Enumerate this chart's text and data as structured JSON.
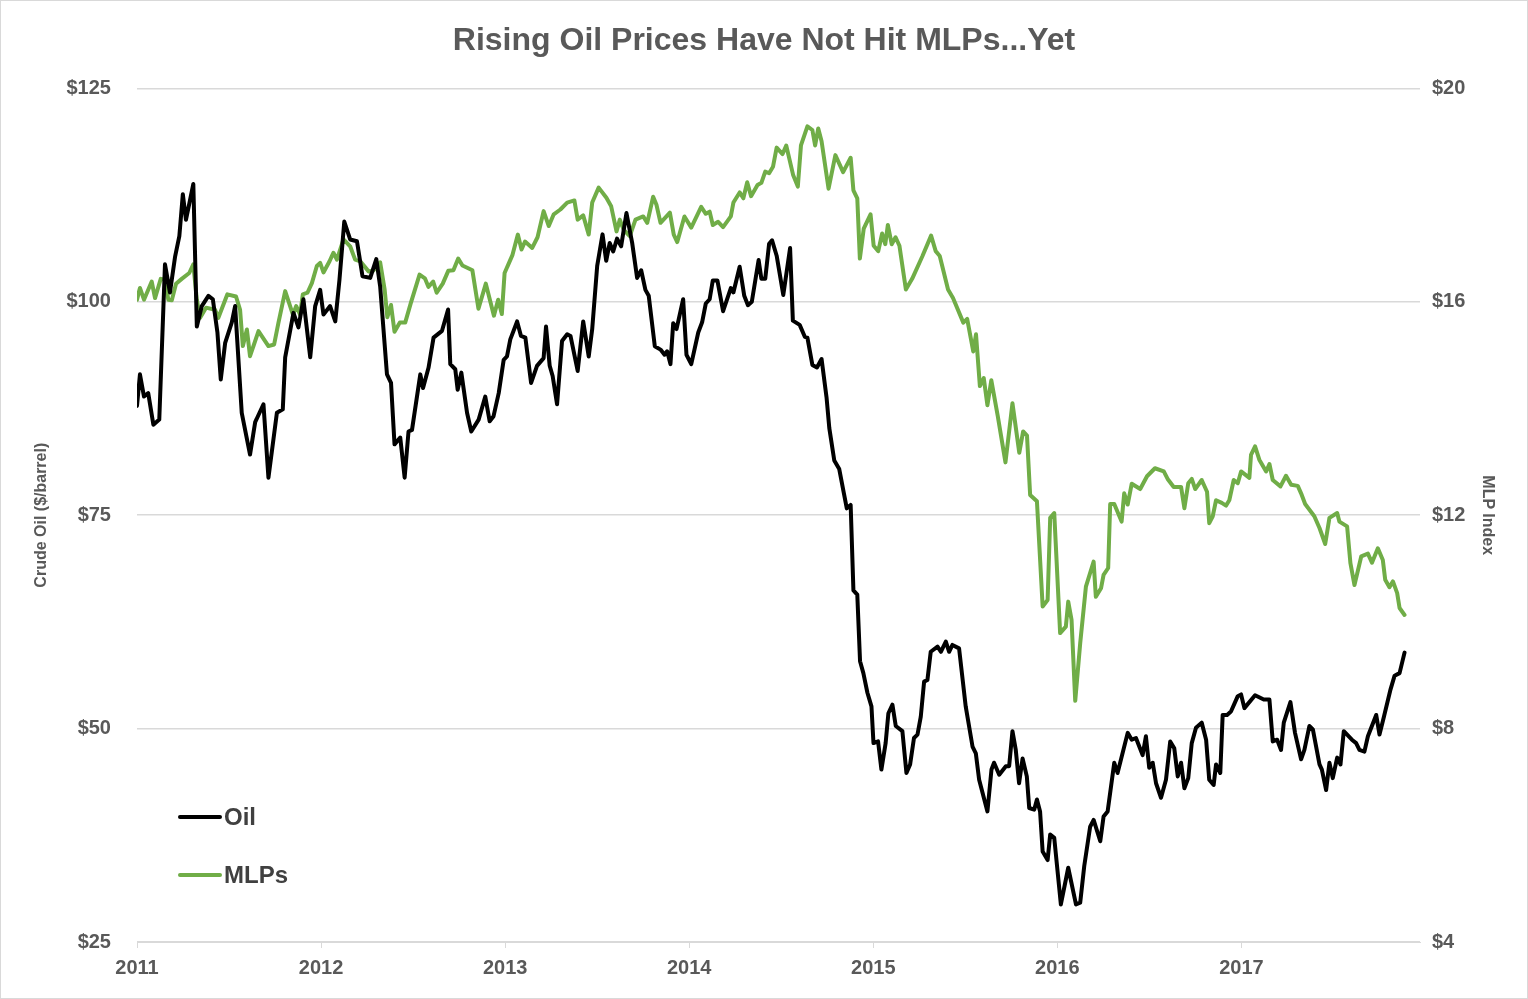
{
  "chart_data": {
    "type": "line",
    "title": "Rising Oil Prices Have Not Hit MLPs...Yet",
    "ylabel": "Crude Oil ($/barrel)",
    "y2label": "MLP Index",
    "xlim": [
      2011,
      2017.97
    ],
    "xticks": [
      2011,
      2012,
      2013,
      2014,
      2015,
      2016,
      2017
    ],
    "ylim": [
      25,
      125
    ],
    "yticks": [
      {
        "value": 25,
        "label": "$25"
      },
      {
        "value": 50,
        "label": "$50"
      },
      {
        "value": 75,
        "label": "$75"
      },
      {
        "value": 100,
        "label": "$100"
      },
      {
        "value": 125,
        "label": "$125"
      }
    ],
    "y2lim": [
      4,
      20
    ],
    "y2ticks": [
      {
        "value": 4,
        "label": "$4"
      },
      {
        "value": 8,
        "label": "$8"
      },
      {
        "value": 12,
        "label": "$12"
      },
      {
        "value": 16,
        "label": "$16"
      },
      {
        "value": 20,
        "label": "$20"
      }
    ],
    "grid": "y",
    "legend": "bottom left",
    "series": [
      {
        "name": "Oil",
        "color": "#000000",
        "x": [
          2011.0,
          2011.016,
          2011.038,
          2011.061,
          2011.089,
          2011.121,
          2011.152,
          2011.179,
          2011.207,
          2011.23,
          2011.249,
          2011.266,
          2011.306,
          2011.325,
          2011.352,
          2011.388,
          2011.412,
          2011.437,
          2011.455,
          2011.479,
          2011.515,
          2011.533,
          2011.569,
          2011.614,
          2011.642,
          2011.687,
          2011.714,
          2011.76,
          2011.792,
          2011.805,
          2011.85,
          2011.877,
          2011.904,
          2011.941,
          2011.968,
          2011.995,
          2012.013,
          2012.049,
          2012.077,
          2012.1,
          2012.126,
          2012.158,
          2012.195,
          2012.225,
          2012.267,
          2012.3,
          2012.321,
          2012.358,
          2012.38,
          2012.399,
          2012.43,
          2012.454,
          2012.475,
          2012.494,
          2012.539,
          2012.554,
          2012.584,
          2012.611,
          2012.657,
          2012.69,
          2012.702,
          2012.729,
          2012.742,
          2012.762,
          2012.793,
          2012.816,
          2012.856,
          2012.892,
          2012.916,
          2012.937,
          2012.965,
          2012.992,
          2013.01,
          2013.028,
          2013.065,
          2013.086,
          2013.11,
          2013.141,
          2013.173,
          2013.209,
          2013.222,
          2013.242,
          2013.258,
          2013.282,
          2013.309,
          2013.337,
          2013.355,
          2013.394,
          2013.424,
          2013.454,
          2013.473,
          2013.5,
          2013.529,
          2013.549,
          2013.568,
          2013.587,
          2013.608,
          2013.63,
          2013.659,
          2013.69,
          2013.717,
          2013.739,
          2013.762,
          2013.78,
          2013.813,
          2013.844,
          2013.866,
          2013.88,
          2013.898,
          2013.913,
          2013.931,
          2013.967,
          2013.985,
          2014.011,
          2014.049,
          2014.07,
          2014.09,
          2014.111,
          2014.128,
          2014.153,
          2014.184,
          2014.226,
          2014.24,
          2014.274,
          2014.299,
          2014.319,
          2014.34,
          2014.377,
          2014.392,
          2014.413,
          2014.434,
          2014.45,
          2014.475,
          2014.511,
          2014.548,
          2014.563,
          2014.6,
          2014.628,
          2014.642,
          2014.669,
          2014.694,
          2014.719,
          2014.746,
          2014.761,
          2014.788,
          2014.815,
          2014.84,
          2014.856,
          2014.877,
          2014.892,
          2014.913,
          2014.928,
          2014.946,
          2014.968,
          2014.99,
          2015.001,
          2015.026,
          2015.044,
          2015.067,
          2015.082,
          2015.104,
          2015.122,
          2015.158,
          2015.18,
          2015.2,
          2015.221,
          2015.24,
          2015.258,
          2015.276,
          2015.294,
          2015.312,
          2015.349,
          2015.367,
          2015.394,
          2015.412,
          2015.43,
          2015.466,
          2015.502,
          2015.539,
          2015.557,
          2015.575,
          2015.62,
          2015.642,
          2015.656,
          2015.684,
          2015.72,
          2015.738,
          2015.756,
          2015.774,
          2015.792,
          2015.811,
          2015.834,
          2015.847,
          2015.874,
          2015.889,
          2015.906,
          2015.92,
          2015.947,
          2015.961,
          2015.983,
          2016.019,
          2016.059,
          2016.101,
          2016.124,
          2016.146,
          2016.178,
          2016.197,
          2016.233,
          2016.251,
          2016.273,
          2016.309,
          2016.327,
          2016.382,
          2016.404,
          2016.427,
          2016.463,
          2016.481,
          2016.499,
          2016.518,
          2016.536,
          2016.563,
          2016.59,
          2016.613,
          2016.635,
          2016.654,
          2016.672,
          2016.69,
          2016.711,
          2016.73,
          2016.753,
          2016.784,
          2016.808,
          2016.825,
          2016.849,
          2016.862,
          2016.885,
          2016.898,
          2016.922,
          2016.943,
          2016.98,
          2016.998,
          2017.016,
          2017.074,
          2017.121,
          2017.152,
          2017.17,
          2017.194,
          2017.215,
          2017.23,
          2017.266,
          2017.291,
          2017.324,
          2017.342,
          2017.369,
          2017.388,
          2017.424,
          2017.437,
          2017.46,
          2017.478,
          2017.496,
          2017.52,
          2017.538,
          2017.556,
          2017.6,
          2017.623,
          2017.641,
          2017.668,
          2017.687,
          2017.705,
          2017.732,
          2017.75,
          2017.774,
          2017.81,
          2017.832,
          2017.859,
          2017.886
        ],
        "values": [
          87.8,
          91.5,
          88.9,
          89.3,
          85.6,
          86.2,
          104.4,
          101.1,
          105.3,
          107.7,
          112.6,
          109.6,
          113.8,
          97.1,
          99.5,
          100.7,
          100.3,
          96.4,
          90.9,
          95.2,
          97.6,
          99.5,
          87.0,
          82.1,
          85.9,
          88.0,
          79.4,
          87.0,
          87.4,
          93.5,
          98.7,
          97.0,
          100.3,
          93.5,
          99.5,
          101.4,
          98.5,
          99.5,
          97.7,
          102.6,
          109.4,
          107.3,
          107.1,
          103.0,
          102.8,
          105.0,
          101.8,
          91.5,
          90.5,
          83.3,
          84.1,
          79.4,
          84.8,
          85.0,
          91.5,
          89.9,
          92.3,
          95.8,
          96.6,
          99.1,
          92.7,
          92.1,
          89.7,
          91.7,
          87.0,
          84.8,
          86.2,
          88.9,
          86.0,
          86.6,
          89.3,
          93.2,
          93.6,
          95.6,
          97.7,
          96.0,
          95.8,
          90.5,
          92.5,
          93.4,
          97.1,
          92.5,
          91.3,
          88.0,
          95.4,
          96.2,
          96.0,
          91.9,
          97.7,
          93.6,
          96.8,
          104.2,
          107.9,
          104.8,
          106.9,
          105.9,
          107.4,
          106.5,
          110.4,
          106.9,
          102.8,
          103.7,
          101.4,
          100.7,
          94.8,
          94.4,
          93.8,
          94.2,
          92.7,
          97.5,
          96.8,
          100.3,
          93.8,
          92.7,
          96.4,
          97.6,
          99.8,
          100.3,
          102.5,
          102.5,
          98.9,
          101.6,
          101.1,
          104.1,
          100.7,
          99.6,
          100.0,
          104.9,
          102.7,
          102.7,
          106.8,
          107.2,
          105.4,
          100.8,
          106.3,
          97.8,
          97.3,
          95.9,
          95.8,
          92.6,
          92.3,
          93.3,
          88.8,
          85.2,
          81.4,
          80.4,
          77.6,
          75.8,
          76.2,
          66.2,
          65.7,
          57.9,
          56.5,
          54.2,
          52.6,
          48.3,
          48.5,
          45.2,
          48.3,
          51.8,
          52.8,
          50.3,
          49.7,
          44.8,
          45.8,
          48.9,
          49.3,
          51.4,
          55.5,
          55.7,
          59.0,
          59.6,
          59.0,
          60.2,
          59.0,
          59.8,
          59.4,
          52.6,
          47.9,
          47.1,
          44.0,
          40.3,
          45.2,
          46.0,
          44.6,
          45.6,
          45.6,
          49.7,
          47.5,
          43.6,
          46.5,
          44.4,
          40.7,
          40.5,
          41.7,
          40.3,
          35.6,
          34.6,
          37.6,
          37.2,
          29.4,
          33.7,
          29.4,
          29.6,
          33.9,
          38.5,
          39.3,
          36.8,
          39.7,
          40.3,
          46.0,
          44.8,
          49.5,
          48.7,
          48.9,
          46.9,
          49.1,
          45.4,
          46.0,
          43.6,
          41.9,
          44.0,
          48.5,
          47.7,
          44.4,
          46.0,
          43.0,
          44.2,
          48.3,
          50.1,
          50.7,
          48.7,
          44.0,
          43.4,
          45.8,
          44.8,
          51.6,
          51.6,
          52.0,
          53.8,
          54.0,
          52.4,
          53.9,
          53.4,
          53.4,
          48.5,
          48.7,
          47.5,
          50.7,
          53.1,
          49.5,
          46.4,
          47.5,
          50.3,
          49.9,
          45.8,
          45.2,
          42.8,
          46.0,
          44.2,
          46.6,
          45.8,
          49.7,
          48.7,
          48.3,
          47.5,
          47.3,
          49.1,
          50.1,
          51.6,
          49.3,
          51.4,
          54.6,
          56.2,
          56.5,
          58.9
        ]
      },
      {
        "name": "MLPs",
        "color": "#70ad47",
        "axis": "y2",
        "x": [
          2011.0,
          2011.016,
          2011.038,
          2011.08,
          2011.098,
          2011.129,
          2011.152,
          2011.17,
          2011.189,
          2011.212,
          2011.243,
          2011.284,
          2011.306,
          2011.325,
          2011.343,
          2011.375,
          2011.424,
          2011.442,
          2011.491,
          2011.538,
          2011.56,
          2011.575,
          2011.597,
          2011.614,
          2011.66,
          2011.714,
          2011.745,
          2011.768,
          2011.805,
          2011.847,
          2011.865,
          2011.886,
          2011.901,
          2011.926,
          2011.95,
          2011.977,
          2011.995,
          2012.013,
          2012.046,
          2012.067,
          2012.086,
          2012.122,
          2012.158,
          2012.185,
          2012.213,
          2012.258,
          2012.283,
          2012.321,
          2012.345,
          2012.36,
          2012.38,
          2012.399,
          2012.428,
          2012.457,
          2012.487,
          2012.535,
          2012.564,
          2012.583,
          2012.609,
          2012.628,
          2012.661,
          2012.691,
          2012.719,
          2012.745,
          2012.768,
          2012.822,
          2012.855,
          2012.895,
          2012.939,
          2012.962,
          2012.982,
          2012.997,
          2013.04,
          2013.069,
          2013.089,
          2013.108,
          2013.147,
          2013.176,
          2013.209,
          2013.237,
          2013.264,
          2013.3,
          2013.337,
          2013.376,
          2013.394,
          2013.424,
          2013.454,
          2013.473,
          2013.508,
          2013.55,
          2013.576,
          2013.605,
          2013.623,
          2013.644,
          2013.677,
          2013.708,
          2013.75,
          2013.772,
          2013.804,
          2013.822,
          2013.844,
          2013.895,
          2013.916,
          2013.935,
          2013.974,
          2014.011,
          2014.065,
          2014.09,
          2014.111,
          2014.128,
          2014.157,
          2014.184,
          2014.226,
          2014.24,
          2014.274,
          2014.294,
          2014.315,
          2014.336,
          2014.371,
          2014.392,
          2014.413,
          2014.434,
          2014.455,
          2014.475,
          2014.507,
          2014.527,
          2014.565,
          2014.59,
          2014.607,
          2014.642,
          2014.669,
          2014.684,
          2014.701,
          2014.719,
          2014.757,
          2014.794,
          2014.836,
          2014.877,
          2014.892,
          2014.913,
          2014.927,
          2014.948,
          2014.985,
          2015.002,
          2015.027,
          2015.048,
          2015.065,
          2015.079,
          2015.1,
          2015.121,
          2015.142,
          2015.177,
          2015.211,
          2015.266,
          2015.314,
          2015.339,
          2015.361,
          2015.406,
          2015.433,
          2015.489,
          2015.51,
          2015.543,
          2015.558,
          2015.579,
          2015.6,
          2015.62,
          2015.641,
          2015.676,
          2015.718,
          2015.756,
          2015.793,
          2015.814,
          2015.835,
          2015.852,
          2015.889,
          2015.92,
          2015.947,
          2015.961,
          2015.983,
          2016.015,
          2016.046,
          2016.059,
          2016.077,
          2016.097,
          2016.124,
          2016.155,
          2016.197,
          2016.209,
          2016.237,
          2016.251,
          2016.276,
          2016.287,
          2016.309,
          2016.349,
          2016.363,
          2016.382,
          2016.404,
          2016.45,
          2016.487,
          2016.53,
          2016.578,
          2016.599,
          2016.632,
          2016.672,
          2016.69,
          2016.711,
          2016.73,
          2016.749,
          2016.784,
          2016.813,
          2016.825,
          2016.844,
          2016.862,
          2016.893,
          2016.916,
          2016.934,
          2016.958,
          2016.98,
          2016.998,
          2017.043,
          2017.052,
          2017.074,
          2017.097,
          2017.134,
          2017.152,
          2017.17,
          2017.212,
          2017.242,
          2017.27,
          2017.306,
          2017.324,
          2017.346,
          2017.396,
          2017.424,
          2017.455,
          2017.478,
          2017.52,
          2017.532,
          2017.574,
          2017.592,
          2017.614,
          2017.651,
          2017.687,
          2017.709,
          2017.741,
          2017.768,
          2017.781,
          2017.804,
          2017.823,
          2017.846,
          2017.859,
          2017.886
        ],
        "values": [
          16.04,
          16.26,
          16.04,
          16.38,
          16.07,
          16.43,
          16.42,
          16.04,
          16.03,
          16.34,
          16.43,
          16.54,
          16.7,
          16.04,
          15.7,
          15.89,
          15.85,
          15.7,
          16.14,
          16.1,
          15.85,
          15.17,
          15.48,
          14.98,
          15.45,
          15.17,
          15.2,
          15.6,
          16.2,
          15.76,
          15.92,
          15.76,
          16.14,
          16.17,
          16.35,
          16.67,
          16.73,
          16.55,
          16.76,
          16.92,
          16.79,
          17.17,
          17.04,
          16.79,
          16.76,
          16.57,
          16.58,
          16.74,
          16.24,
          15.71,
          15.94,
          15.44,
          15.61,
          15.61,
          15.97,
          16.51,
          16.44,
          16.28,
          16.38,
          16.17,
          16.34,
          16.58,
          16.59,
          16.81,
          16.68,
          16.59,
          15.87,
          16.34,
          15.74,
          16.04,
          15.77,
          16.54,
          16.88,
          17.26,
          16.98,
          17.13,
          17.01,
          17.21,
          17.7,
          17.42,
          17.64,
          17.73,
          17.86,
          17.9,
          17.54,
          17.62,
          17.26,
          17.86,
          18.14,
          17.95,
          17.79,
          17.32,
          17.54,
          17.35,
          17.23,
          17.54,
          17.6,
          17.48,
          17.97,
          17.82,
          17.48,
          17.67,
          17.26,
          17.12,
          17.6,
          17.39,
          17.78,
          17.65,
          17.69,
          17.44,
          17.5,
          17.4,
          17.6,
          17.86,
          18.05,
          17.94,
          18.24,
          17.98,
          18.19,
          18.23,
          18.44,
          18.41,
          18.53,
          18.89,
          18.77,
          18.93,
          18.37,
          18.16,
          18.93,
          19.29,
          19.22,
          18.93,
          19.25,
          19.01,
          18.12,
          18.75,
          18.43,
          18.7,
          18.09,
          17.94,
          16.81,
          17.37,
          17.64,
          17.05,
          16.95,
          17.28,
          17.08,
          17.44,
          17.08,
          17.21,
          17.05,
          16.23,
          16.43,
          16.85,
          17.24,
          16.95,
          16.86,
          16.23,
          16.07,
          15.61,
          15.68,
          15.07,
          15.39,
          14.42,
          14.57,
          14.06,
          14.53,
          13.86,
          12.99,
          14.1,
          13.17,
          13.57,
          13.49,
          12.38,
          12.26,
          10.29,
          10.41,
          11.95,
          12.04,
          9.79,
          9.91,
          10.38,
          10.04,
          8.52,
          9.6,
          10.66,
          11.13,
          10.47,
          10.63,
          10.88,
          11.01,
          12.21,
          12.21,
          11.88,
          12.41,
          12.2,
          12.59,
          12.49,
          12.73,
          12.88,
          12.82,
          12.68,
          12.53,
          12.53,
          12.13,
          12.6,
          12.68,
          12.49,
          12.66,
          12.44,
          11.85,
          11.98,
          12.28,
          12.23,
          12.18,
          12.28,
          12.66,
          12.6,
          12.82,
          12.7,
          13.13,
          13.29,
          13.04,
          12.82,
          12.96,
          12.66,
          12.54,
          12.74,
          12.57,
          12.55,
          12.41,
          12.21,
          11.98,
          11.76,
          11.46,
          11.95,
          12.04,
          11.88,
          11.79,
          11.1,
          10.69,
          11.23,
          11.28,
          11.11,
          11.38,
          11.16,
          10.79,
          10.65,
          10.76,
          10.54,
          10.26,
          10.13
        ]
      }
    ]
  }
}
